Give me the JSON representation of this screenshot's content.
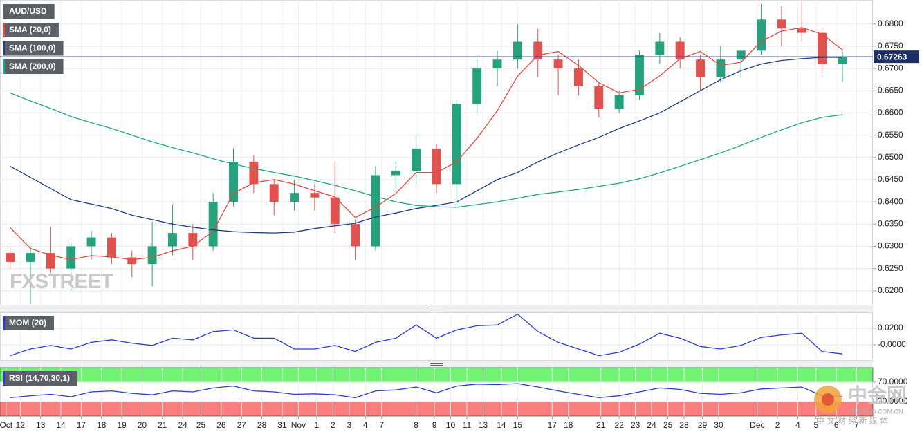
{
  "chart_data": [
    {
      "type": "candlestick",
      "title": "AUD/USD",
      "up_color": "#26a17b",
      "down_color": "#e0524f",
      "last_price": 0.67263,
      "last_price_color": "#1c2f66",
      "open": [
        0.6285,
        0.6265,
        0.6285,
        0.625,
        0.63,
        0.632,
        0.6275,
        0.626,
        0.63,
        0.633,
        0.63,
        0.64,
        0.649,
        0.644,
        0.64,
        0.642,
        0.641,
        0.635,
        0.63,
        0.646,
        0.647,
        0.652,
        0.644,
        0.662,
        0.67,
        0.672,
        0.676,
        0.672,
        0.67,
        0.666,
        0.661,
        0.664,
        0.673,
        0.676,
        0.672,
        0.668,
        0.672,
        0.674,
        0.681,
        0.679,
        0.678,
        0.671
      ],
      "high": [
        0.63,
        0.63,
        0.6345,
        0.631,
        0.6335,
        0.633,
        0.629,
        0.6355,
        0.6395,
        0.635,
        0.642,
        0.652,
        0.6505,
        0.645,
        0.645,
        0.644,
        0.649,
        0.636,
        0.648,
        0.649,
        0.655,
        0.653,
        0.663,
        0.672,
        0.674,
        0.68,
        0.679,
        0.673,
        0.672,
        0.667,
        0.665,
        0.674,
        0.678,
        0.677,
        0.673,
        0.675,
        0.674,
        0.6845,
        0.684,
        0.685,
        0.679,
        0.674
      ],
      "low": [
        0.625,
        0.617,
        0.624,
        0.62,
        0.627,
        0.626,
        0.623,
        0.621,
        0.628,
        0.627,
        0.629,
        0.639,
        0.642,
        0.637,
        0.638,
        0.638,
        0.633,
        0.627,
        0.629,
        0.642,
        0.644,
        0.642,
        0.639,
        0.66,
        0.666,
        0.67,
        0.668,
        0.664,
        0.664,
        0.659,
        0.66,
        0.663,
        0.671,
        0.67,
        0.665,
        0.667,
        0.668,
        0.673,
        0.675,
        0.676,
        0.669,
        0.667
      ],
      "close": [
        0.6265,
        0.6285,
        0.625,
        0.63,
        0.632,
        0.6275,
        0.626,
        0.63,
        0.633,
        0.63,
        0.64,
        0.649,
        0.644,
        0.64,
        0.642,
        0.641,
        0.635,
        0.63,
        0.646,
        0.647,
        0.652,
        0.644,
        0.662,
        0.67,
        0.672,
        0.676,
        0.672,
        0.67,
        0.666,
        0.661,
        0.664,
        0.673,
        0.676,
        0.672,
        0.668,
        0.672,
        0.674,
        0.681,
        0.679,
        0.678,
        0.671,
        0.6726
      ],
      "series": [
        {
          "name": "SMA (20,0)",
          "color": "#e8463f",
          "values": [
            0.6342,
            0.6295,
            0.628,
            0.627,
            0.6279,
            0.6276,
            0.627,
            0.6275,
            0.629,
            0.63,
            0.6334,
            0.6419,
            0.6443,
            0.645,
            0.644,
            0.6425,
            0.6411,
            0.6365,
            0.6388,
            0.6419,
            0.6466,
            0.6466,
            0.649,
            0.6543,
            0.6605,
            0.6683,
            0.673,
            0.6738,
            0.6707,
            0.6668,
            0.6645,
            0.6653,
            0.6683,
            0.6722,
            0.6738,
            0.6707,
            0.6714,
            0.6761,
            0.6784,
            0.6792,
            0.6777,
            0.6742
          ]
        },
        {
          "name": "SMA (100,0)",
          "color": "#1f3c88",
          "values": [
            0.648,
            0.6455,
            0.643,
            0.6405,
            0.6395,
            0.6385,
            0.637,
            0.636,
            0.635,
            0.6343,
            0.6337,
            0.6333,
            0.6331,
            0.633,
            0.6332,
            0.634,
            0.6346,
            0.6352,
            0.6366,
            0.6375,
            0.6385,
            0.6392,
            0.64,
            0.6425,
            0.645,
            0.6466,
            0.649,
            0.651,
            0.6528,
            0.6545,
            0.6565,
            0.6582,
            0.66,
            0.6625,
            0.665,
            0.6675,
            0.6695,
            0.671,
            0.6718,
            0.6722,
            0.6725,
            0.6725
          ]
        },
        {
          "name": "SMA (200,0)",
          "color": "#1fa58a",
          "values": [
            0.6645,
            0.6627,
            0.661,
            0.6592,
            0.6578,
            0.6565,
            0.655,
            0.6535,
            0.6522,
            0.651,
            0.6497,
            0.6485,
            0.6475,
            0.6466,
            0.6458,
            0.6448,
            0.6437,
            0.6425,
            0.6412,
            0.64,
            0.6392,
            0.6389,
            0.6388,
            0.6394,
            0.64,
            0.6408,
            0.6417,
            0.6422,
            0.6428,
            0.6435,
            0.6442,
            0.6452,
            0.6465,
            0.648,
            0.6495,
            0.651,
            0.6527,
            0.6545,
            0.6562,
            0.6578,
            0.659,
            0.6596
          ]
        }
      ],
      "ylim": [
        0.6167,
        0.6854
      ],
      "yticks": [
        {
          "value": 0.62,
          "label": "0.6200"
        },
        {
          "value": 0.625,
          "label": "0.6250"
        },
        {
          "value": 0.63,
          "label": "0.6300"
        },
        {
          "value": 0.635,
          "label": "0.6350"
        },
        {
          "value": 0.64,
          "label": "0.6400"
        },
        {
          "value": 0.645,
          "label": "0.6450"
        },
        {
          "value": 0.65,
          "label": "0.6500"
        },
        {
          "value": 0.655,
          "label": "0.6550"
        },
        {
          "value": 0.66,
          "label": "0.6600"
        },
        {
          "value": 0.665,
          "label": "0.6650"
        },
        {
          "value": 0.67,
          "label": "0.6700"
        },
        {
          "value": 0.675,
          "label": "0.6750"
        },
        {
          "value": 0.68,
          "label": "0.6800"
        }
      ],
      "grid": true
    },
    {
      "type": "line",
      "series": [
        {
          "name": "MOM (20)",
          "color": "#2a3bd1",
          "values": [
            -0.013,
            -0.005,
            -0.0008,
            -0.005,
            0.003,
            0.006,
            0.002,
            -0.0008,
            0.008,
            0.006,
            0.016,
            0.018,
            0.008,
            0.008,
            -0.005,
            -0.005,
            -0.0008,
            -0.008,
            0.003,
            0.008,
            0.024,
            0.008,
            0.018,
            0.023,
            0.024,
            0.037,
            0.016,
            0.003,
            -0.005,
            -0.013,
            -0.009,
            0.0008,
            0.014,
            0.008,
            -0.002,
            -0.005,
            -0.0008,
            0.009,
            0.012,
            0.014,
            -0.008,
            -0.011
          ]
        }
      ],
      "ylim": [
        -0.0192,
        0.0392
      ],
      "yticks": [
        {
          "value": 0.02,
          "label": "0.0200"
        },
        {
          "value": 0,
          "label": "-0.0000"
        }
      ],
      "grid": true
    },
    {
      "type": "line",
      "series": [
        {
          "name": "RSI (14,70,30,1)",
          "color": "#2a3bd1",
          "values": [
            38,
            42,
            45,
            40,
            50,
            52,
            47,
            44,
            52,
            50,
            58,
            62,
            52,
            50,
            45,
            46,
            44,
            38,
            52,
            54,
            60,
            48,
            62,
            66,
            65,
            67,
            60,
            52,
            45,
            38,
            42,
            50,
            58,
            55,
            47,
            45,
            48,
            56,
            58,
            60,
            42,
            40
          ]
        }
      ],
      "ylim": [
        0,
        100
      ],
      "yticks": [
        {
          "value": 70,
          "label": "70.0000"
        },
        {
          "value": 30,
          "label": "30.0000"
        }
      ],
      "band_colors": [
        "#72f272",
        "#f97e7e"
      ],
      "grid": true,
      "xlim": [
        -0.5,
        42.5
      ],
      "xticks": [
        {
          "value": -0.2,
          "label": "Oct"
        },
        {
          "value": 0.5,
          "label": "12"
        },
        {
          "value": 1.5,
          "label": "13"
        },
        {
          "value": 2.5,
          "label": "14"
        },
        {
          "value": 3.5,
          "label": "17"
        },
        {
          "value": 4.5,
          "label": "18"
        },
        {
          "value": 5.5,
          "label": "19"
        },
        {
          "value": 6.5,
          "label": "20"
        },
        {
          "value": 7.5,
          "label": "21"
        },
        {
          "value": 8.5,
          "label": "24"
        },
        {
          "value": 9.4,
          "label": "25"
        },
        {
          "value": 10.4,
          "label": "26"
        },
        {
          "value": 11.4,
          "label": "27"
        },
        {
          "value": 12.4,
          "label": "28"
        },
        {
          "value": 13.4,
          "label": "31"
        },
        {
          "value": 14.2,
          "label": "Nov"
        },
        {
          "value": 15.1,
          "label": "1"
        },
        {
          "value": 15.9,
          "label": "2"
        },
        {
          "value": 16.7,
          "label": "3"
        },
        {
          "value": 17.5,
          "label": "4"
        },
        {
          "value": 18.3,
          "label": "7"
        },
        {
          "value": 20.0,
          "label": "8"
        },
        {
          "value": 20.9,
          "label": "9"
        },
        {
          "value": 21.7,
          "label": "10"
        },
        {
          "value": 22.5,
          "label": "11"
        },
        {
          "value": 23.3,
          "label": "13"
        },
        {
          "value": 24.2,
          "label": "14"
        },
        {
          "value": 25.0,
          "label": "15"
        },
        {
          "value": 26.7,
          "label": "17"
        },
        {
          "value": 27.5,
          "label": "18"
        },
        {
          "value": 29.1,
          "label": "21"
        },
        {
          "value": 30.0,
          "label": "22"
        },
        {
          "value": 30.8,
          "label": "23"
        },
        {
          "value": 31.6,
          "label": "24"
        },
        {
          "value": 32.4,
          "label": "25"
        },
        {
          "value": 33.2,
          "label": "28"
        },
        {
          "value": 34.1,
          "label": "29"
        },
        {
          "value": 34.9,
          "label": "30"
        },
        {
          "value": 36.8,
          "label": "Dec"
        },
        {
          "value": 37.8,
          "label": "2"
        },
        {
          "value": 38.8,
          "label": "4"
        },
        {
          "value": 39.7,
          "label": "5"
        },
        {
          "value": 40.7,
          "label": "6"
        },
        {
          "value": 41.7,
          "label": "7"
        }
      ]
    }
  ],
  "watermarks": {
    "brand": "FXSTREET",
    "logo_text": "中金网",
    "logo_url": "CNGOLD.COM.CN",
    "logo_tagline": "中 文 财 经 新 媒 体"
  }
}
